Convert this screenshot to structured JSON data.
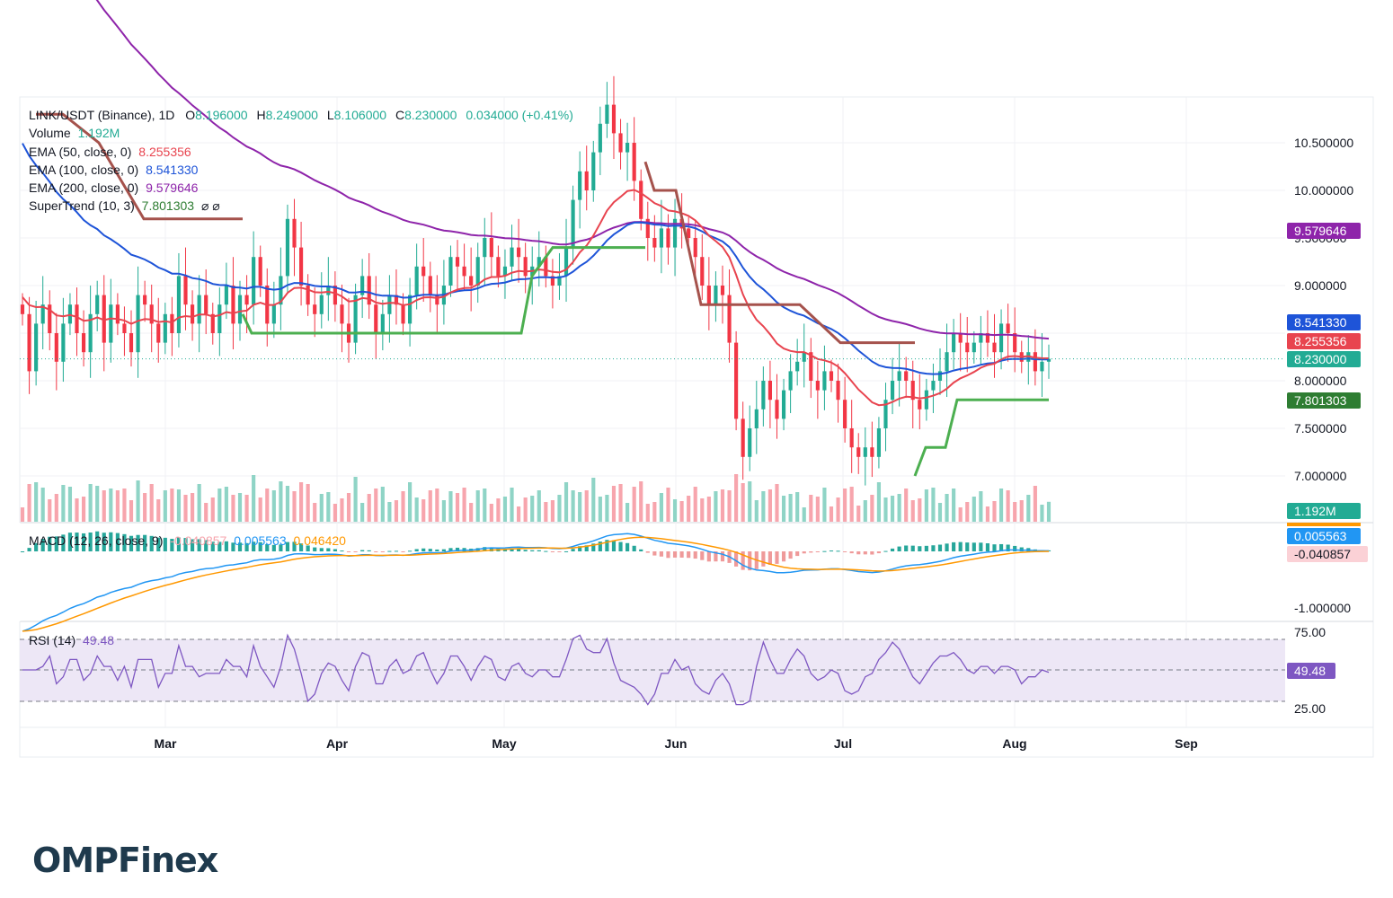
{
  "symbol": {
    "title": "LINK/USDT (Binance), 1D",
    "open_label": "O",
    "open": "8.196000",
    "high_label": "H",
    "high": "8.249000",
    "low_label": "L",
    "low": "8.106000",
    "close_label": "C",
    "close": "8.230000",
    "change": "0.034000 (+0.41%)"
  },
  "indicators": {
    "volume": {
      "label": "Volume",
      "value": "1.192M"
    },
    "ema50": {
      "label": "EMA (50, close, 0)",
      "value": "8.255356",
      "color": "#e8444f"
    },
    "ema100": {
      "label": "EMA (100, close, 0)",
      "value": "8.541330",
      "color": "#1e54d8"
    },
    "ema200": {
      "label": "EMA (200, close, 0)",
      "value": "9.579646",
      "color": "#8e24aa"
    },
    "supertrend": {
      "label": "SuperTrend (10, 3)",
      "value": "7.801303",
      "symbols": "⌀ ⌀",
      "up_color": "#4caf50",
      "down_color": "#a5524c"
    },
    "macd": {
      "label": "MACD (12, 26, close, 9)",
      "hist": "-0.040857",
      "macd": "0.005563",
      "signal": "0.046420"
    },
    "rsi": {
      "label": "RSI (14)",
      "value": "49.48"
    }
  },
  "price_axis": {
    "ticks": [
      "10.500000",
      "10.000000",
      "9.500000",
      "9.000000",
      "8.000000",
      "7.500000",
      "7.000000"
    ],
    "tags": {
      "ema200": "9.579646",
      "ema100": "8.541330",
      "ema50": "8.255356",
      "close": "8.230000",
      "supertrend": "7.801303",
      "volume": "1.192M"
    }
  },
  "macd_axis": {
    "macd_tag": "0.005563",
    "hist_tag": "-0.040857",
    "tick": "-1.000000"
  },
  "rsi_axis": {
    "ticks": [
      "75.00",
      "25.00"
    ],
    "tag": "49.48"
  },
  "time_axis": {
    "labels": [
      "Mar",
      "Apr",
      "May",
      "Jun",
      "Jul",
      "Aug",
      "Sep"
    ]
  },
  "brand": {
    "name_a": "OMPF",
    "name_b": "inex"
  },
  "colors": {
    "up": "#22ab94",
    "down": "#f23645",
    "macd_line": "#2196f3",
    "signal_line": "#ff9800",
    "rsi_line": "#7e57c2",
    "rsi_band": "#ede7f6"
  },
  "chart_data": {
    "type": "candlestick",
    "title": "LINK/USDT (Binance), 1D",
    "x_labels": [
      "Mar",
      "Apr",
      "May",
      "Jun",
      "Jul",
      "Aug",
      "Sep"
    ],
    "y_range": [
      6.7,
      10.9
    ],
    "close_path": [
      8.7,
      8.1,
      8.6,
      8.8,
      8.5,
      8.2,
      8.6,
      8.8,
      8.5,
      8.3,
      8.7,
      8.9,
      8.4,
      8.8,
      8.6,
      8.5,
      8.3,
      8.9,
      8.8,
      8.6,
      8.4,
      8.7,
      8.5,
      9.1,
      8.8,
      8.6,
      8.9,
      8.7,
      8.5,
      8.8,
      9.0,
      8.6,
      8.9,
      8.8,
      9.3,
      9.0,
      8.6,
      8.8,
      9.1,
      9.7,
      9.4,
      9.0,
      8.8,
      8.7,
      8.9,
      9.0,
      8.8,
      8.6,
      8.4,
      8.9,
      9.1,
      8.8,
      8.5,
      8.7,
      8.9,
      8.8,
      8.6,
      8.9,
      9.2,
      9.1,
      8.9,
      8.8,
      9.0,
      9.3,
      9.2,
      9.1,
      9.0,
      9.3,
      9.5,
      9.3,
      9.1,
      9.2,
      9.4,
      9.3,
      9.1,
      9.2,
      9.3,
      9.1,
      9.0,
      9.1,
      9.4,
      9.9,
      10.2,
      10.0,
      10.4,
      10.7,
      10.9,
      10.6,
      10.4,
      10.5,
      10.1,
      9.7,
      9.5,
      9.4,
      9.6,
      9.4,
      9.7,
      9.6,
      9.5,
      9.3,
      9.0,
      8.8,
      9.0,
      8.9,
      8.4,
      7.6,
      7.2,
      7.5,
      7.7,
      8.0,
      7.8,
      7.6,
      7.9,
      8.1,
      8.2,
      8.3,
      8.0,
      7.9,
      8.1,
      8.0,
      7.8,
      7.5,
      7.3,
      7.2,
      7.3,
      7.2,
      7.5,
      7.8,
      8.0,
      8.1,
      8.0,
      7.8,
      7.7,
      7.9,
      8.0,
      8.1,
      8.3,
      8.5,
      8.4,
      8.3,
      8.4,
      8.5,
      8.4,
      8.3,
      8.6,
      8.5,
      8.3,
      8.2,
      8.3,
      8.1,
      8.2,
      8.23
    ],
    "series": [
      {
        "name": "EMA (50, close, 0)",
        "last": 8.255356
      },
      {
        "name": "EMA (100, close, 0)",
        "last": 8.54133
      },
      {
        "name": "EMA (200, close, 0)",
        "last": 9.579646
      },
      {
        "name": "SuperTrend (10, 3)",
        "last": 7.801303
      }
    ],
    "macd": {
      "hist": -0.040857,
      "macd": 0.005563,
      "signal": 0.04642
    },
    "rsi": {
      "value": 49.48,
      "bands": [
        25,
        75
      ]
    }
  }
}
